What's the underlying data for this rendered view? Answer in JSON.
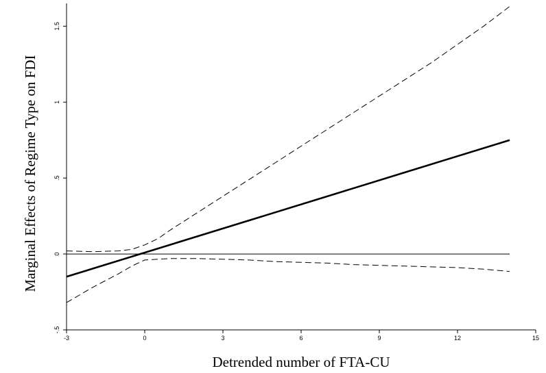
{
  "chart_data": {
    "type": "line",
    "title": "",
    "xlabel": "Detrended number of FTA-CU",
    "ylabel": "Marginal Effects of Regime Type on FDI",
    "xlim": [
      -3,
      15
    ],
    "ylim": [
      -0.5,
      1.65
    ],
    "x_ticks": [
      -3,
      0,
      3,
      6,
      9,
      12,
      15
    ],
    "x_tick_labels": [
      "-3",
      "0",
      "3",
      "6",
      "9",
      "12",
      "15"
    ],
    "y_ticks": [
      -0.5,
      0,
      0.5,
      1,
      1.5
    ],
    "y_tick_labels": [
      "-.5",
      "0",
      ".5",
      "1",
      "1.5"
    ],
    "grid": false,
    "reference_line": {
      "y": 0,
      "x_from": -3,
      "x_to": 14
    },
    "series": [
      {
        "style": "solid",
        "x": [
          -3,
          14
        ],
        "y": [
          -0.15,
          0.75
        ]
      },
      {
        "style": "dashed",
        "x": [
          -3,
          -2,
          -1,
          -0.5,
          0,
          0.5,
          1,
          2,
          3,
          4,
          5,
          6,
          7,
          8,
          9,
          10,
          11,
          12,
          13,
          14
        ],
        "y": [
          0.02,
          0.015,
          0.02,
          0.03,
          0.06,
          0.1,
          0.16,
          0.27,
          0.38,
          0.49,
          0.6,
          0.71,
          0.82,
          0.93,
          1.04,
          1.15,
          1.26,
          1.38,
          1.5,
          1.63
        ]
      },
      {
        "style": "dashed",
        "x": [
          -3,
          -2,
          -1,
          -0.5,
          0,
          0.5,
          1,
          2,
          3,
          4,
          5,
          6,
          7,
          8,
          9,
          10,
          11,
          12,
          13,
          14
        ],
        "y": [
          -0.32,
          -0.22,
          -0.13,
          -0.08,
          -0.04,
          -0.035,
          -0.03,
          -0.03,
          -0.035,
          -0.04,
          -0.05,
          -0.055,
          -0.06,
          -0.07,
          -0.075,
          -0.08,
          -0.085,
          -0.09,
          -0.1,
          -0.115
        ]
      }
    ]
  }
}
